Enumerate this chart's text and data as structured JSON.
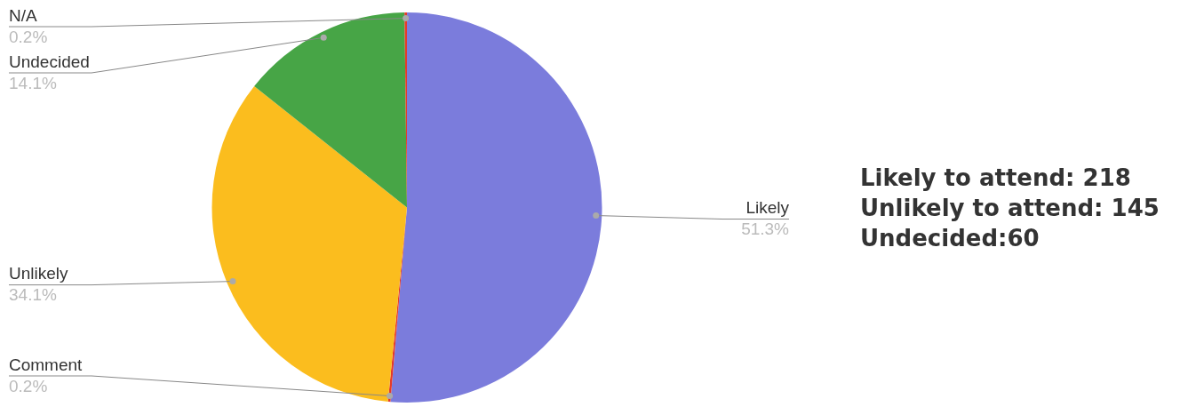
{
  "chart_data": {
    "type": "pie",
    "categories": [
      "Likely",
      "Comment",
      "Unlikely",
      "Undecided",
      "N/A"
    ],
    "values": [
      51.3,
      0.2,
      34.1,
      14.1,
      0.2
    ],
    "colors": [
      "#7b7cdc",
      "#e53a2a",
      "#fbbd1e",
      "#47a546",
      "#e53a2a"
    ],
    "value_labels": [
      "51.3%",
      "0.2%",
      "34.1%",
      "14.1%",
      "0.2%"
    ],
    "annotations": [
      "Likely to attend: 218",
      "Unlikely to attend: 145",
      "Undecided:60"
    ]
  }
}
